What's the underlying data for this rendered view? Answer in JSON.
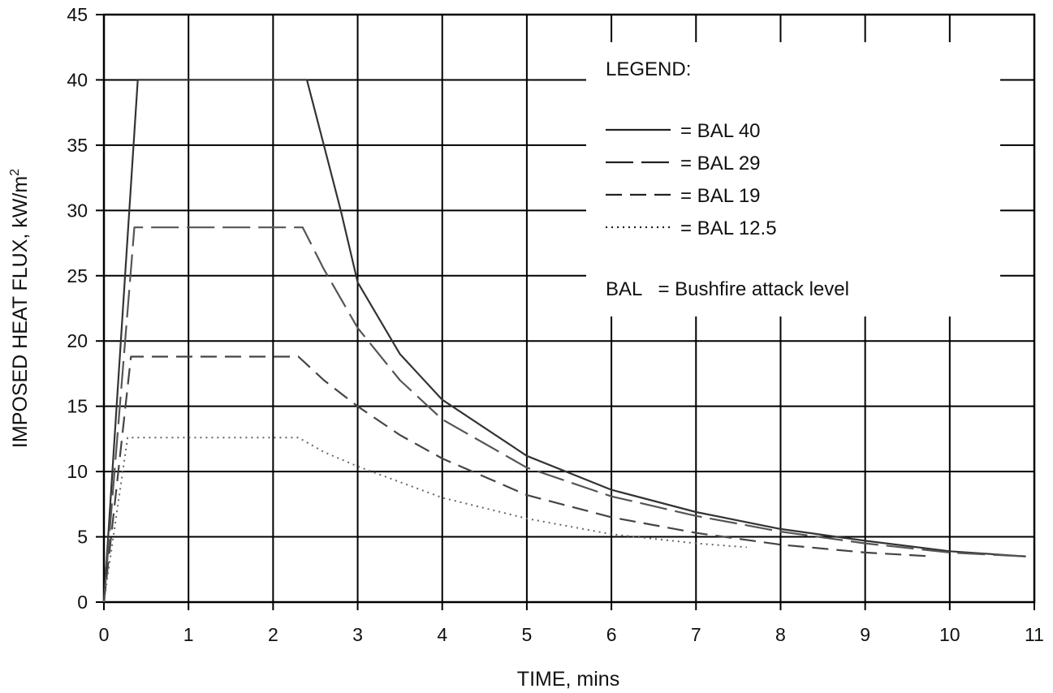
{
  "chart_data": {
    "type": "line",
    "xlabel": "TIME, mins",
    "ylabel_main": "IMPOSED HEAT FLUX, kW/m",
    "ylabel_sup": "2",
    "xlim": [
      0,
      11
    ],
    "ylim": [
      0,
      45
    ],
    "x_ticks": [
      "0",
      "1",
      "2",
      "3",
      "4",
      "5",
      "6",
      "7",
      "8",
      "9",
      "10",
      "11"
    ],
    "y_ticks": [
      "0",
      "5",
      "10",
      "15",
      "20",
      "25",
      "30",
      "35",
      "40",
      "45"
    ],
    "grid": true,
    "legend_position": "top-right",
    "legend_title": "LEGEND:",
    "legend_note": "BAL   = Bushfire attack level",
    "series": [
      {
        "name": "= BAL 40",
        "style": "solid",
        "points": [
          [
            0,
            0
          ],
          [
            0.4,
            40
          ],
          [
            2.4,
            40
          ],
          [
            2.6,
            35
          ],
          [
            2.8,
            30
          ],
          [
            3.0,
            24.5
          ],
          [
            3.5,
            19.0
          ],
          [
            4.0,
            15.5
          ],
          [
            5.0,
            11.2
          ],
          [
            6.0,
            8.6
          ],
          [
            7.0,
            6.9
          ],
          [
            8.0,
            5.6
          ],
          [
            9.0,
            4.7
          ],
          [
            10.0,
            3.9
          ],
          [
            10.9,
            3.5
          ]
        ]
      },
      {
        "name": "= BAL 29",
        "style": "long-dash",
        "points": [
          [
            0,
            0
          ],
          [
            0.36,
            28.7
          ],
          [
            2.35,
            28.7
          ],
          [
            2.6,
            25.5
          ],
          [
            3.0,
            21.0
          ],
          [
            3.5,
            17.0
          ],
          [
            4.0,
            14.0
          ],
          [
            5.0,
            10.3
          ],
          [
            6.0,
            8.1
          ],
          [
            7.0,
            6.6
          ],
          [
            8.0,
            5.4
          ],
          [
            9.0,
            4.5
          ],
          [
            10.0,
            3.8
          ],
          [
            10.9,
            3.5
          ]
        ]
      },
      {
        "name": "= BAL 19",
        "style": "dash",
        "points": [
          [
            0,
            0
          ],
          [
            0.32,
            18.8
          ],
          [
            2.3,
            18.8
          ],
          [
            2.6,
            17.0
          ],
          [
            3.0,
            15.0
          ],
          [
            3.5,
            12.8
          ],
          [
            4.0,
            11.0
          ],
          [
            5.0,
            8.2
          ],
          [
            6.0,
            6.5
          ],
          [
            7.0,
            5.3
          ],
          [
            8.0,
            4.4
          ],
          [
            9.0,
            3.8
          ],
          [
            9.8,
            3.5
          ]
        ]
      },
      {
        "name": "= BAL 12.5",
        "style": "dotted",
        "points": [
          [
            0,
            0
          ],
          [
            0.28,
            12.6
          ],
          [
            2.3,
            12.6
          ],
          [
            2.6,
            11.5
          ],
          [
            3.0,
            10.4
          ],
          [
            3.5,
            9.2
          ],
          [
            4.0,
            8.0
          ],
          [
            5.0,
            6.4
          ],
          [
            6.0,
            5.2
          ],
          [
            7.0,
            4.5
          ],
          [
            7.6,
            4.2
          ]
        ]
      }
    ]
  }
}
